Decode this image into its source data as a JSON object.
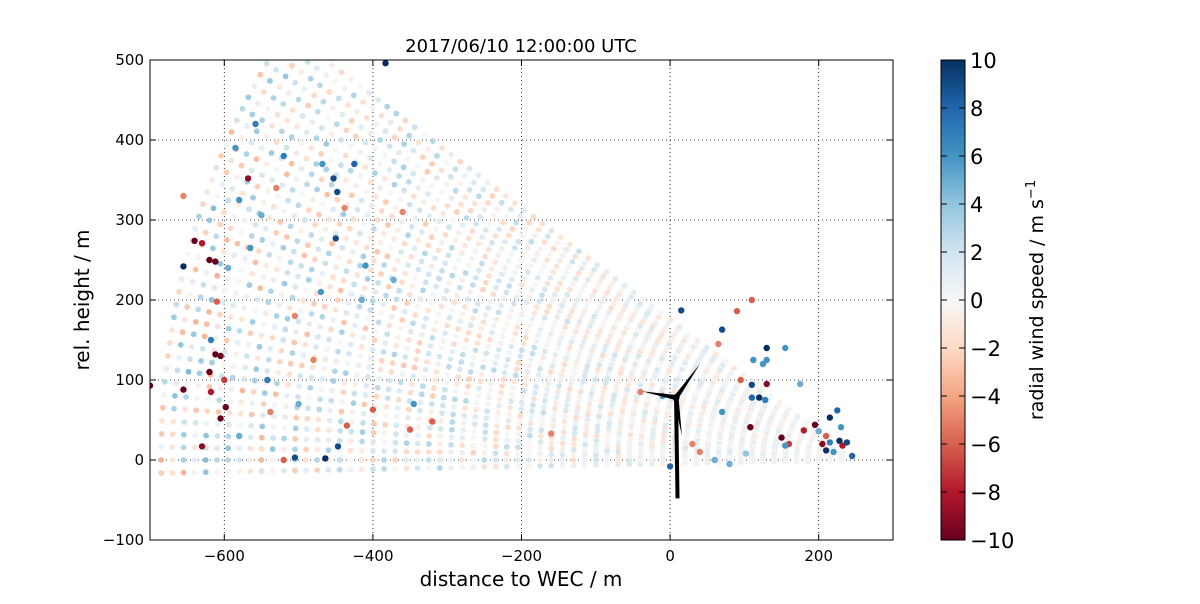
{
  "chart_data": {
    "type": "scatter",
    "title": "2017/06/10 12:00:00 UTC",
    "xlabel": "distance to WEC / m",
    "ylabel": "rel. height / m",
    "xlim": [
      -700,
      300
    ],
    "ylim": [
      -100,
      500
    ],
    "xticks": [
      -600,
      -400,
      -200,
      0,
      200
    ],
    "xtick_labels": [
      "−600",
      "−400",
      "−200",
      "0",
      "200"
    ],
    "yticks": [
      -100,
      0,
      100,
      200,
      300,
      400,
      500
    ],
    "ytick_labels": [
      "−100",
      "0",
      "100",
      "200",
      "300",
      "400",
      "500"
    ],
    "grid": true,
    "colorbar": {
      "label": "radial wind speed / m s",
      "label_superscript": "−1",
      "colormap": "RdBu",
      "range": [
        -10,
        10
      ],
      "ticks": [
        -10,
        -8,
        -6,
        -4,
        -2,
        0,
        2,
        4,
        6,
        8,
        10
      ],
      "tick_labels": [
        "−10",
        "−8",
        "−6",
        "−4",
        "−2",
        "0",
        "2",
        "4",
        "6",
        "8",
        "10"
      ]
    },
    "scan": {
      "origin": [
        250,
        0
      ],
      "elevation_min_deg": -1,
      "elevation_max_deg": 35,
      "elevation_step_deg": 1,
      "range_start_m": 20,
      "range_step_m": 15,
      "max_range_m": 945,
      "max_height_m": 500
    },
    "turbine": {
      "hub": [
        8,
        78
      ],
      "tower_base": [
        10,
        -48
      ],
      "blade_tips": [
        [
          40,
          120
        ],
        [
          -38,
          86
        ],
        [
          16,
          30
        ]
      ]
    },
    "strong_points": [
      [
        -383,
        496
      ],
      [
        -558,
        420
      ],
      [
        -425,
        370
      ],
      [
        -453,
        352
      ],
      [
        -448,
        335
      ],
      [
        -568,
        352
      ],
      [
        -450,
        277
      ],
      [
        -640,
        274
      ],
      [
        -655,
        242
      ],
      [
        -612,
        248
      ],
      [
        -620,
        250
      ],
      [
        -630,
        271
      ],
      [
        -610,
        198
      ],
      [
        -618,
        150
      ],
      [
        -612,
        132
      ],
      [
        -605,
        130
      ],
      [
        -700,
        93
      ],
      [
        -655,
        88
      ],
      [
        -618,
        85
      ],
      [
        -598,
        66
      ],
      [
        -605,
        52
      ],
      [
        -630,
        17
      ],
      [
        -505,
        3
      ],
      [
        -464,
        2
      ],
      [
        -447,
        17
      ],
      [
        -400,
        63
      ],
      [
        -350,
        38
      ],
      [
        110,
        94
      ],
      [
        110,
        78
      ],
      [
        120,
        78
      ],
      [
        128,
        75
      ],
      [
        130,
        95
      ],
      [
        108,
        41
      ],
      [
        102,
        8
      ],
      [
        150,
        28
      ],
      [
        160,
        20
      ],
      [
        180,
        37
      ],
      [
        195,
        44
      ],
      [
        200,
        36
      ],
      [
        205,
        20
      ],
      [
        210,
        12
      ],
      [
        215,
        22
      ],
      [
        220,
        10
      ],
      [
        228,
        24
      ],
      [
        232,
        18
      ],
      [
        238,
        22
      ],
      [
        245,
        5
      ],
      [
        225,
        62
      ],
      [
        215,
        53
      ],
      [
        130,
        140
      ],
      [
        125,
        120
      ],
      [
        112,
        125
      ],
      [
        70,
        163
      ],
      [
        15,
        187
      ],
      [
        110,
        200
      ],
      [
        90,
        186
      ],
      [
        65,
        145
      ],
      [
        80,
        -5
      ],
      [
        60,
        0
      ],
      [
        0,
        -8
      ],
      [
        -40,
        85
      ],
      [
        -160,
        33
      ],
      [
        230,
        41
      ],
      [
        -620,
        110
      ],
      [
        -520,
        380
      ],
      [
        -580,
        325
      ],
      [
        -468,
        370
      ],
      [
        -438,
        315
      ],
      [
        -655,
        330
      ],
      [
        -595,
        240
      ],
      [
        -470,
        210
      ],
      [
        -480,
        125
      ],
      [
        -542,
        100
      ],
      [
        -538,
        60
      ],
      [
        -500,
        70
      ],
      [
        -435,
        43
      ],
      [
        -580,
        30
      ],
      [
        -520,
        0
      ],
      [
        -345,
        70
      ],
      [
        -320,
        48
      ],
      [
        -600,
        100
      ],
      [
        155,
        140
      ],
      [
        130,
        125
      ],
      [
        95,
        100
      ],
      [
        40,
        10
      ],
      [
        -10,
        80
      ],
      [
        70,
        60
      ],
      [
        30,
        20
      ],
      [
        175,
        95
      ],
      [
        155,
        18
      ],
      [
        210,
        30
      ],
      [
        -530,
        340
      ],
      [
        -585,
        390
      ],
      [
        -550,
        306
      ],
      [
        -565,
        265
      ],
      [
        -505,
        180
      ],
      [
        -360,
        310
      ],
      [
        -410,
        243
      ],
      [
        -372,
        225
      ],
      [
        -415,
        200
      ]
    ],
    "strong_values": [
      10,
      7,
      8,
      9,
      9,
      -9,
      9,
      -10,
      10,
      -10,
      -10,
      -8,
      -6,
      7,
      -10,
      -10,
      -10,
      -10,
      -8,
      -10,
      -10,
      -9,
      9,
      10,
      9,
      -6,
      -6,
      9,
      8,
      10,
      7,
      -9,
      -10,
      4,
      -10,
      -7,
      -8,
      -10,
      5,
      -9,
      10,
      7,
      6,
      10,
      -8,
      9,
      8,
      8,
      10,
      10,
      6,
      6,
      9,
      9,
      -6,
      -6,
      -5,
      5,
      5,
      8,
      -5,
      -5,
      6,
      -10,
      7,
      6,
      6,
      -5,
      -5,
      5,
      6,
      -5,
      7,
      -5,
      5,
      -6,
      5,
      -6,
      6,
      -6,
      -7,
      6,
      6,
      -6,
      -5,
      6,
      6,
      -5,
      5,
      6,
      -6,
      -5,
      6,
      5,
      6,
      -5,
      -5,
      6,
      5,
      5
    ]
  }
}
